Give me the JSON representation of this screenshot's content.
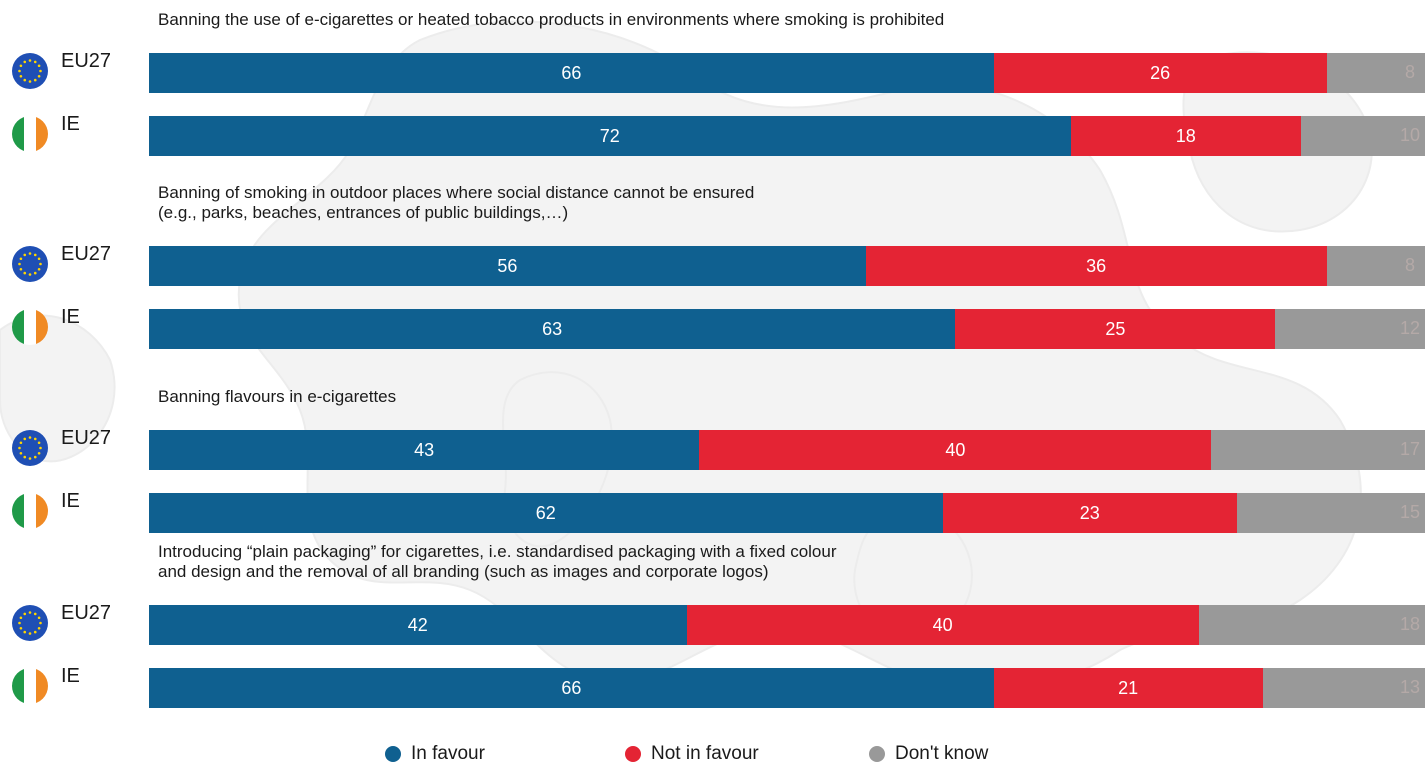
{
  "colors": {
    "in_favour": "#0f6090",
    "not_in_favour": "#e42434",
    "dont_know": "#999999",
    "eu_flag_blue": "#1f4fb4",
    "eu_flag_stars": "#ffd500",
    "ie_green": "#1f9a48",
    "ie_white": "#ffffff",
    "ie_orange": "#f08a24"
  },
  "chart_data": {
    "type": "bar",
    "orientation": "horizontal",
    "stacked": true,
    "scale_max": 100,
    "legend_position": "bottom",
    "legend": [
      {
        "key": "in_favour",
        "label": "In favour"
      },
      {
        "key": "not_in_favour",
        "label": "Not in favour"
      },
      {
        "key": "dont_know",
        "label": "Don't know"
      }
    ],
    "questions": [
      {
        "text": "Banning the use of e-cigarettes or heated tobacco products in environments where smoking is prohibited",
        "rows": [
          {
            "label": "EU27",
            "flag": "eu-flag-icon",
            "in_favour": 66,
            "not_in_favour": 26,
            "dont_know": 8
          },
          {
            "label": "IE",
            "flag": "ireland-flag-icon",
            "in_favour": 72,
            "not_in_favour": 18,
            "dont_know": 10
          }
        ]
      },
      {
        "text": "Banning of smoking in outdoor places where social distance cannot be ensured\n(e.g., parks, beaches, entrances of public buildings,…)",
        "rows": [
          {
            "label": "EU27",
            "flag": "eu-flag-icon",
            "in_favour": 56,
            "not_in_favour": 36,
            "dont_know": 8
          },
          {
            "label": "IE",
            "flag": "ireland-flag-icon",
            "in_favour": 63,
            "not_in_favour": 25,
            "dont_know": 12
          }
        ]
      },
      {
        "text": "Banning flavours in e-cigarettes",
        "rows": [
          {
            "label": "EU27",
            "flag": "eu-flag-icon",
            "in_favour": 43,
            "not_in_favour": 40,
            "dont_know": 17
          },
          {
            "label": "IE",
            "flag": "ireland-flag-icon",
            "in_favour": 62,
            "not_in_favour": 23,
            "dont_know": 15
          }
        ]
      },
      {
        "text": "Introducing “plain packaging” for cigarettes, i.e. standardised packaging with a fixed colour\nand design and the removal of all branding (such as images and corporate logos)",
        "rows": [
          {
            "label": "EU27",
            "flag": "eu-flag-icon",
            "in_favour": 42,
            "not_in_favour": 40,
            "dont_know": 18
          },
          {
            "label": "IE",
            "flag": "ireland-flag-icon",
            "in_favour": 66,
            "not_in_favour": 21,
            "dont_know": 13
          }
        ]
      }
    ]
  }
}
